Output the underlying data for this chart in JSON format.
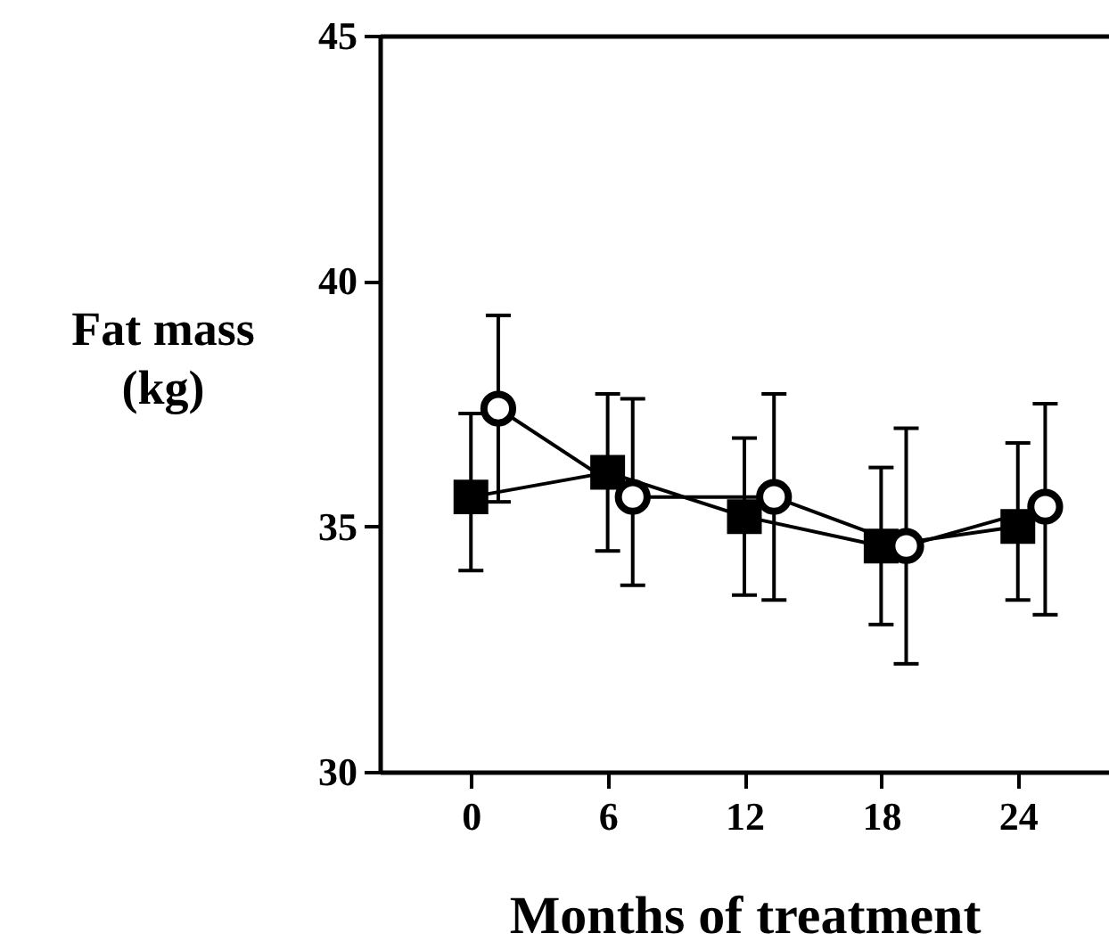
{
  "chart_data": {
    "type": "line",
    "xlabel": "Months of treatment",
    "ylabel": "Fat mass\n(kg)",
    "xlim": [
      -4,
      28
    ],
    "xticks": [
      0,
      6,
      12,
      18,
      24
    ],
    "ylim": [
      30,
      45
    ],
    "yticks": [
      30,
      35,
      40,
      45
    ],
    "grid": false,
    "line_style": "solid",
    "series": [
      {
        "color": "#000000",
        "marker": "square",
        "x": [
          0,
          6,
          12,
          18,
          24
        ],
        "values": [
          35.6,
          36.1,
          35.2,
          34.6,
          35.0
        ],
        "errors": [
          [
            34.1,
            37.3
          ],
          [
            34.5,
            37.7
          ],
          [
            33.6,
            36.8
          ],
          [
            33.0,
            36.2
          ],
          [
            33.5,
            36.7
          ]
        ]
      },
      {
        "color": "#000000",
        "marker": "circle",
        "x": [
          1.2,
          7.1,
          13.3,
          19.1,
          25.2
        ],
        "values": [
          37.4,
          35.6,
          35.6,
          34.6,
          35.4
        ],
        "errors": [
          [
            35.5,
            39.3
          ],
          [
            33.8,
            37.6
          ],
          [
            33.5,
            37.7
          ],
          [
            32.2,
            37.0
          ],
          [
            33.2,
            37.5
          ]
        ]
      }
    ]
  }
}
